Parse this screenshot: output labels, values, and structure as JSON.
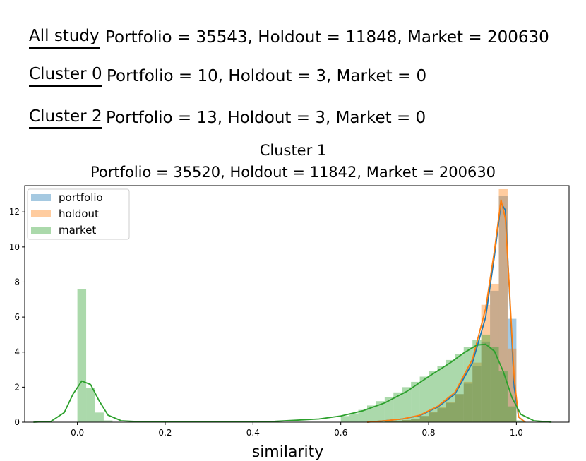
{
  "summary_rows": [
    {
      "tag": "All study",
      "text": "Portfolio = 35543, Holdout = 11848, Market = 200630"
    },
    {
      "tag": "Cluster 0",
      "text": "Portfolio = 10, Holdout = 3, Market = 0"
    },
    {
      "tag": "Cluster 2",
      "text": "Portfolio = 13, Holdout = 3, Market = 0"
    }
  ],
  "chart_title_line1": "Cluster 1",
  "chart_title_line2": "Portfolio = 35520, Holdout = 11842, Market = 200630",
  "chart_data": {
    "type": "histogram+kde",
    "title": "Cluster 1",
    "subtitle": "Portfolio = 35520, Holdout = 11842, Market = 200630",
    "xlabel": "similarity",
    "ylabel": "",
    "xlim": [
      -0.12,
      1.12
    ],
    "ylim": [
      0,
      13.5
    ],
    "xticks": [
      0.0,
      0.2,
      0.4,
      0.6,
      0.8,
      1.0
    ],
    "xtick_labels": [
      "0.0",
      "0.2",
      "0.4",
      "0.6",
      "0.8",
      "1.0"
    ],
    "yticks": [
      0,
      2,
      4,
      6,
      8,
      10,
      12
    ],
    "ytick_labels": [
      "0",
      "2",
      "4",
      "6",
      "8",
      "10",
      "12"
    ],
    "legend_position": "top-left",
    "grid": false,
    "bin_width": 0.02,
    "series": [
      {
        "name": "portfolio",
        "color": "#1f77b4",
        "bins": [
          [
            0.7,
            0.05
          ],
          [
            0.72,
            0.08
          ],
          [
            0.74,
            0.12
          ],
          [
            0.76,
            0.2
          ],
          [
            0.78,
            0.35
          ],
          [
            0.8,
            0.55
          ],
          [
            0.82,
            0.8
          ],
          [
            0.84,
            1.1
          ],
          [
            0.86,
            1.6
          ],
          [
            0.88,
            2.2
          ],
          [
            0.9,
            3.2
          ],
          [
            0.92,
            4.6
          ],
          [
            0.94,
            7.5
          ],
          [
            0.96,
            12.9
          ],
          [
            0.98,
            5.9
          ]
        ],
        "kde": [
          [
            0.66,
            0.0
          ],
          [
            0.7,
            0.08
          ],
          [
            0.74,
            0.18
          ],
          [
            0.78,
            0.38
          ],
          [
            0.82,
            0.85
          ],
          [
            0.86,
            1.6
          ],
          [
            0.9,
            3.4
          ],
          [
            0.93,
            6.0
          ],
          [
            0.95,
            9.5
          ],
          [
            0.965,
            12.5
          ],
          [
            0.975,
            12.1
          ],
          [
            0.985,
            7.0
          ],
          [
            0.995,
            2.0
          ],
          [
            1.005,
            0.3
          ],
          [
            1.02,
            0.0
          ]
        ]
      },
      {
        "name": "holdout",
        "color": "#ff7f0e",
        "bins": [
          [
            0.7,
            0.05
          ],
          [
            0.72,
            0.08
          ],
          [
            0.74,
            0.12
          ],
          [
            0.76,
            0.2
          ],
          [
            0.78,
            0.35
          ],
          [
            0.8,
            0.6
          ],
          [
            0.82,
            0.85
          ],
          [
            0.84,
            1.15
          ],
          [
            0.86,
            1.6
          ],
          [
            0.88,
            2.3
          ],
          [
            0.9,
            3.4
          ],
          [
            0.92,
            6.7
          ],
          [
            0.94,
            7.9
          ],
          [
            0.96,
            13.3
          ],
          [
            0.98,
            4.2
          ]
        ],
        "kde": [
          [
            0.66,
            0.0
          ],
          [
            0.7,
            0.08
          ],
          [
            0.74,
            0.18
          ],
          [
            0.78,
            0.4
          ],
          [
            0.82,
            0.9
          ],
          [
            0.86,
            1.7
          ],
          [
            0.9,
            3.6
          ],
          [
            0.93,
            6.5
          ],
          [
            0.95,
            9.8
          ],
          [
            0.965,
            12.7
          ],
          [
            0.975,
            11.6
          ],
          [
            0.985,
            7.2
          ],
          [
            0.995,
            2.5
          ],
          [
            1.005,
            0.3
          ],
          [
            1.02,
            0.0
          ]
        ]
      },
      {
        "name": "market",
        "color": "#2ca02c",
        "bins": [
          [
            0.0,
            7.6
          ],
          [
            0.02,
            1.95
          ],
          [
            0.04,
            0.55
          ],
          [
            0.06,
            0.1
          ],
          [
            0.6,
            0.35
          ],
          [
            0.62,
            0.5
          ],
          [
            0.64,
            0.7
          ],
          [
            0.66,
            0.95
          ],
          [
            0.68,
            1.2
          ],
          [
            0.7,
            1.45
          ],
          [
            0.72,
            1.7
          ],
          [
            0.74,
            2.0
          ],
          [
            0.76,
            2.3
          ],
          [
            0.78,
            2.6
          ],
          [
            0.8,
            2.9
          ],
          [
            0.82,
            3.2
          ],
          [
            0.84,
            3.55
          ],
          [
            0.86,
            3.9
          ],
          [
            0.88,
            4.3
          ],
          [
            0.9,
            4.7
          ],
          [
            0.92,
            5.0
          ],
          [
            0.94,
            4.3
          ],
          [
            0.96,
            2.9
          ],
          [
            0.98,
            0.9
          ],
          [
            1.0,
            0.1
          ]
        ],
        "kde": [
          [
            -0.1,
            0.0
          ],
          [
            -0.06,
            0.05
          ],
          [
            -0.03,
            0.55
          ],
          [
            -0.01,
            1.6
          ],
          [
            0.01,
            2.35
          ],
          [
            0.03,
            2.15
          ],
          [
            0.05,
            1.2
          ],
          [
            0.07,
            0.4
          ],
          [
            0.1,
            0.08
          ],
          [
            0.15,
            0.02
          ],
          [
            0.3,
            0.02
          ],
          [
            0.45,
            0.05
          ],
          [
            0.55,
            0.18
          ],
          [
            0.6,
            0.35
          ],
          [
            0.65,
            0.65
          ],
          [
            0.7,
            1.1
          ],
          [
            0.75,
            1.75
          ],
          [
            0.8,
            2.6
          ],
          [
            0.85,
            3.4
          ],
          [
            0.88,
            3.95
          ],
          [
            0.91,
            4.4
          ],
          [
            0.93,
            4.45
          ],
          [
            0.95,
            4.05
          ],
          [
            0.97,
            2.9
          ],
          [
            0.99,
            1.4
          ],
          [
            1.01,
            0.45
          ],
          [
            1.04,
            0.08
          ],
          [
            1.08,
            0.0
          ]
        ]
      }
    ]
  }
}
